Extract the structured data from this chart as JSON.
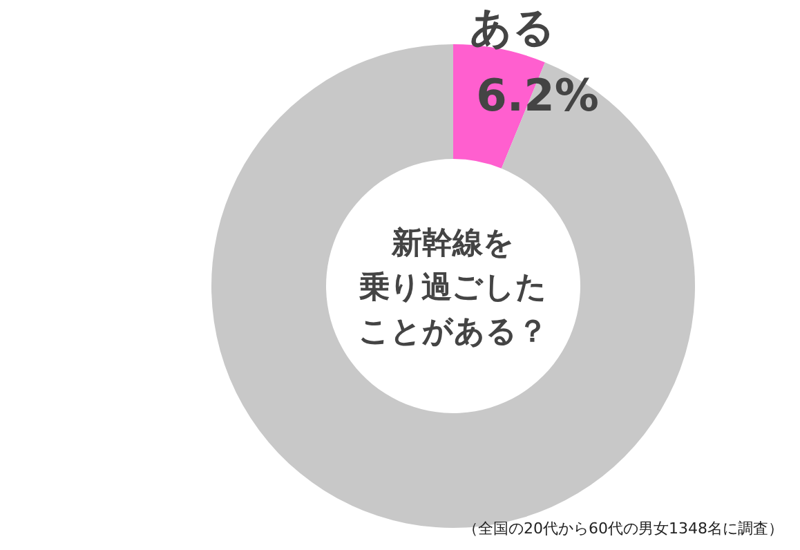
{
  "chart_data": {
    "type": "donut",
    "title": "新幹線を乗り過ごしたことがある？",
    "categories": [
      "ある",
      null
    ],
    "values": [
      6.2,
      93.8
    ],
    "colors": [
      "#ff5fcf",
      "#c8c8c8"
    ],
    "value_labels": [
      "6.2%",
      null
    ],
    "annotations": [
      "（全国の20代から60代の男女1348名に調査）"
    ]
  }
}
